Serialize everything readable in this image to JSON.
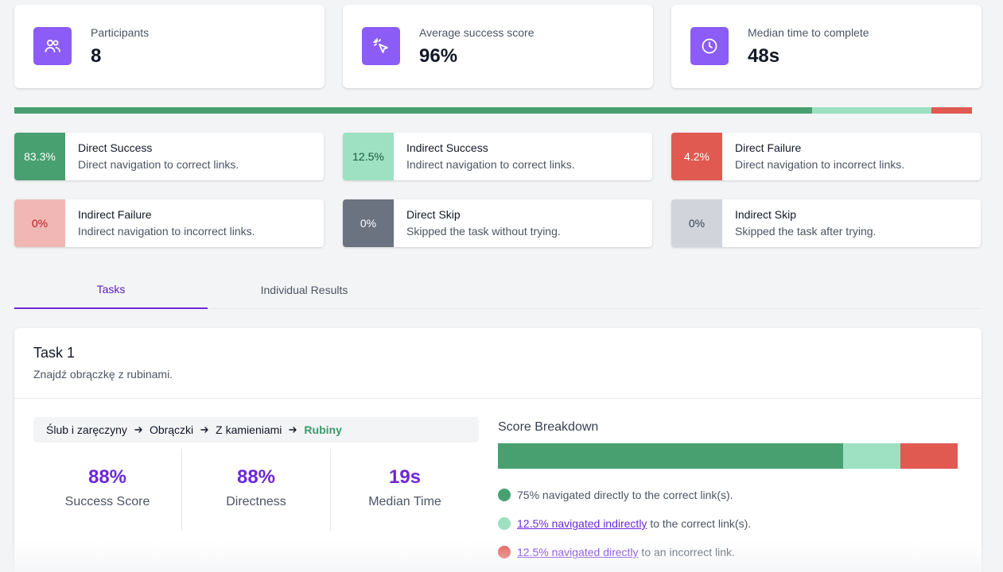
{
  "stats": [
    {
      "label": "Participants",
      "value": "8",
      "icon": "users-icon"
    },
    {
      "label": "Average success score",
      "value": "96%",
      "icon": "cursor-click-icon"
    },
    {
      "label": "Median time to complete",
      "value": "48s",
      "icon": "clock-icon"
    }
  ],
  "overall_bar": [
    {
      "name": "Direct Success",
      "value": 83.3,
      "color": "#48a070"
    },
    {
      "name": "Indirect Success",
      "value": 12.5,
      "color": "#9de0c2"
    },
    {
      "name": "Direct Failure",
      "value": 4.2,
      "color": "#e05a52"
    }
  ],
  "legend": [
    {
      "pct": "83.3%",
      "title": "Direct Success",
      "desc": "Direct navigation to correct links.",
      "bg": "#48a070",
      "fg": "#ffffff"
    },
    {
      "pct": "12.5%",
      "title": "Indirect Success",
      "desc": "Indirect navigation to correct links.",
      "bg": "#9de0c2",
      "fg": "#1f5a3e"
    },
    {
      "pct": "4.2%",
      "title": "Direct Failure",
      "desc": "Direct navigation to incorrect links.",
      "bg": "#e05a52",
      "fg": "#ffffff"
    },
    {
      "pct": "0%",
      "title": "Indirect Failure",
      "desc": "Indirect navigation to incorrect links.",
      "bg": "#f0b7b4",
      "fg": "#b91c1c"
    },
    {
      "pct": "0%",
      "title": "Direct Skip",
      "desc": "Skipped the task without trying.",
      "bg": "#6b7280",
      "fg": "#ffffff"
    },
    {
      "pct": "0%",
      "title": "Indirect Skip",
      "desc": "Skipped the task after trying.",
      "bg": "#d1d5db",
      "fg": "#374151"
    }
  ],
  "tabs": [
    {
      "label": "Tasks",
      "active": true
    },
    {
      "label": "Individual Results",
      "active": false
    }
  ],
  "task": {
    "title": "Task 1",
    "description": "Znajdź obrączkę z rubinami.",
    "breadcrumb": [
      "Ślub i zaręczyny",
      "Obrączki",
      "Z kamieniami",
      "Rubiny"
    ],
    "metrics": [
      {
        "value": "88%",
        "label": "Success Score"
      },
      {
        "value": "88%",
        "label": "Directness"
      },
      {
        "value": "19s",
        "label": "Median Time"
      }
    ],
    "breakdown_title": "Score Breakdown",
    "breakdown_bar": [
      {
        "value": 75,
        "color": "#48a070"
      },
      {
        "value": 12.5,
        "color": "#9de0c2"
      },
      {
        "value": 12.5,
        "color": "#e05a52"
      }
    ],
    "breakdown_items": [
      {
        "link": "",
        "text": "75% navigated directly to the correct link(s).",
        "color": "#48a070"
      },
      {
        "link": "12.5% navigated indirectly",
        "text": " to the correct link(s).",
        "color": "#9de0c2"
      },
      {
        "link": "12.5% navigated directly",
        "text": " to an incorrect link.",
        "color": "#e05a52"
      }
    ]
  }
}
